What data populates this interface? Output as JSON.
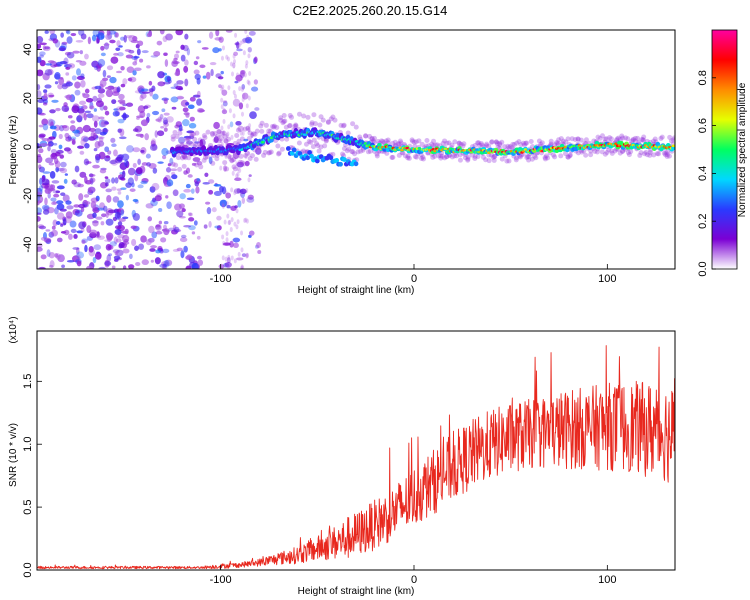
{
  "title": "C2E2.2025.260.20.15.G14",
  "chart_data": [
    {
      "type": "heatmap",
      "xlabel": "Height of straight line (km)",
      "ylabel": "Frequency (Hz)",
      "xlim": [
        -195,
        135
      ],
      "ylim": [
        -50,
        48
      ],
      "xticks": [
        -100,
        0,
        100
      ],
      "xtick_labels": [
        "-100",
        "0",
        "100"
      ],
      "yticks": [
        -40,
        -20,
        0,
        20,
        40
      ],
      "ytick_labels": [
        "-40",
        "-20",
        "0",
        "20",
        "40"
      ],
      "colorbar": {
        "label": "Normalized spectral amplitude",
        "range": [
          0,
          1
        ],
        "ticks": [
          0.0,
          0.2,
          0.4,
          0.6,
          0.8
        ],
        "tick_labels": [
          "0.0",
          "0.2",
          "0.4",
          "0.6",
          "0.8"
        ],
        "colormap": [
          "#ffffff",
          "#7b00d4",
          "#2a3bff",
          "#00d8ff",
          "#00ff60",
          "#e6ff00",
          "#ff8c00",
          "#ff0000",
          "#ff00a0"
        ]
      },
      "ridge": [
        {
          "x": -120,
          "f": -2
        },
        {
          "x": -90,
          "f": -1
        },
        {
          "x": -70,
          "f": 5
        },
        {
          "x": -50,
          "f": 6
        },
        {
          "x": -35,
          "f": 3
        },
        {
          "x": -20,
          "f": 0
        },
        {
          "x": 0,
          "f": -1
        },
        {
          "x": 50,
          "f": -2
        },
        {
          "x": 100,
          "f": 1
        },
        {
          "x": 135,
          "f": 0
        }
      ]
    },
    {
      "type": "line",
      "xlabel": "Height of straight line (km)",
      "ylabel": "SNR (10 * v/v)",
      "y_multiplier_label": "(x10⁴)",
      "xlim": [
        -195,
        135
      ],
      "ylim": [
        0,
        1.9
      ],
      "xticks": [
        -100,
        0,
        100
      ],
      "xtick_labels": [
        "-100",
        "0",
        "100"
      ],
      "yticks": [
        0.0,
        0.5,
        1.0,
        1.5
      ],
      "ytick_labels": [
        "0.0",
        "0.5",
        "1.0",
        "1.5"
      ],
      "line_color": "#e8281e",
      "series": [
        {
          "name": "SNR",
          "x": [
            -195,
            -180,
            -160,
            -140,
            -120,
            -110,
            -100,
            -90,
            -80,
            -70,
            -60,
            -50,
            -40,
            -35,
            -30,
            -20,
            -10,
            0,
            10,
            20,
            30,
            40,
            50,
            60,
            70,
            80,
            90,
            100,
            110,
            120,
            130,
            135
          ],
          "y": [
            0.02,
            0.02,
            0.02,
            0.02,
            0.02,
            0.02,
            0.03,
            0.04,
            0.06,
            0.09,
            0.12,
            0.17,
            0.22,
            0.25,
            0.28,
            0.36,
            0.46,
            0.58,
            0.7,
            0.82,
            0.92,
            1.0,
            1.05,
            1.08,
            1.1,
            1.12,
            1.13,
            1.14,
            1.14,
            1.12,
            1.1,
            1.05
          ],
          "noise": [
            0.01,
            0.01,
            0.01,
            0.01,
            0.01,
            0.01,
            0.02,
            0.02,
            0.03,
            0.05,
            0.07,
            0.1,
            0.14,
            0.17,
            0.18,
            0.2,
            0.22,
            0.24,
            0.26,
            0.27,
            0.28,
            0.28,
            0.28,
            0.28,
            0.3,
            0.32,
            0.33,
            0.35,
            0.36,
            0.38,
            0.4,
            0.4
          ]
        }
      ]
    }
  ]
}
